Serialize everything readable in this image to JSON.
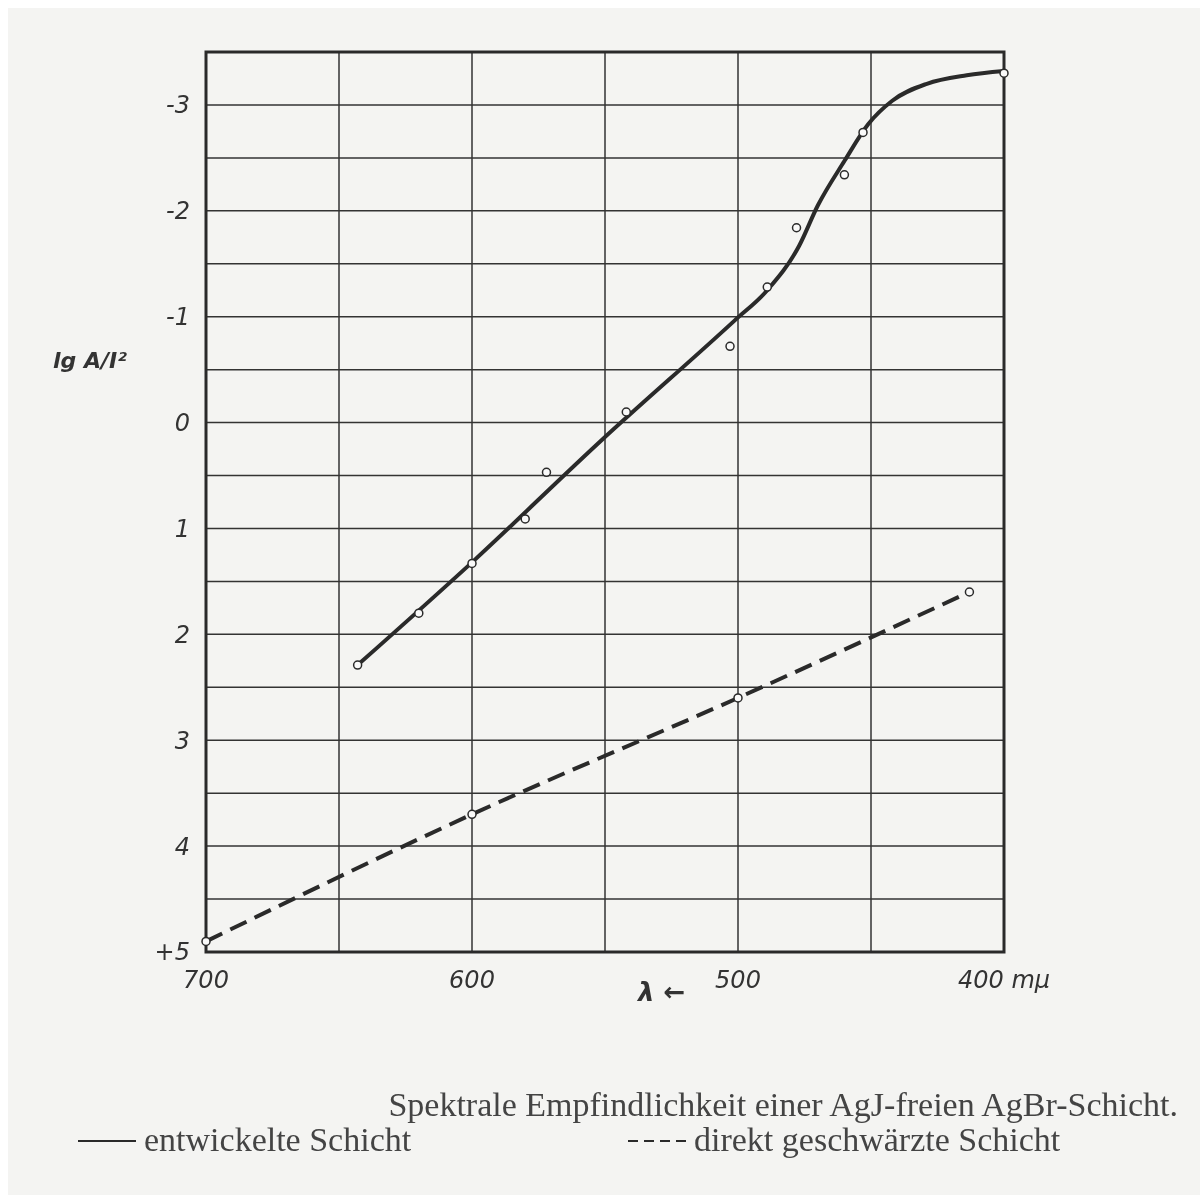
{
  "chart_data": {
    "type": "line",
    "ylabel": "lg A/I²",
    "xlabel": "λ ←",
    "annotations": [
      "Spektrale Empfindlichkeit einer AgJ-freien AgBr-Schicht."
    ],
    "xlim": [
      700,
      400
    ],
    "xticks": [
      700,
      600,
      500,
      {
        "value": 400,
        "label": "400 mμ"
      }
    ],
    "ylim": [
      5,
      -3.5
    ],
    "yticks": [
      -3,
      -2,
      -1,
      0,
      1,
      2,
      3,
      4,
      {
        "value": 5,
        "label": "+5"
      }
    ],
    "grid": true,
    "legend": "bottom",
    "series": [
      {
        "name": "entwickelte Schicht",
        "color": "#2a2a2a",
        "line_style": "solid",
        "marker": "none",
        "x": [
          643,
          600,
          551,
          501,
          489,
          477,
          470,
          460,
          451,
          442,
          429,
          414,
          400
        ],
        "values": [
          2.29,
          1.32,
          0.16,
          -0.97,
          -1.25,
          -1.67,
          -2.05,
          -2.47,
          -2.82,
          -3.04,
          -3.2,
          -3.28,
          -3.32
        ]
      },
      {
        "type": "scatter",
        "color": "#2a2a2a",
        "marker": "circle",
        "x": [
          643,
          620,
          600,
          580,
          572,
          542,
          503,
          489,
          478,
          460,
          453,
          400
        ],
        "values": [
          2.29,
          1.8,
          1.33,
          0.91,
          0.47,
          -0.1,
          -0.72,
          -1.28,
          -1.84,
          -2.34,
          -2.74,
          -3.3
        ]
      },
      {
        "name": "direkt geschwärzte Schicht",
        "color": "#2a2a2a",
        "line_style": "dashed",
        "marker": "circle",
        "x": [
          700,
          600,
          500,
          413
        ],
        "values": [
          4.9,
          3.7,
          2.6,
          1.6
        ]
      }
    ]
  }
}
